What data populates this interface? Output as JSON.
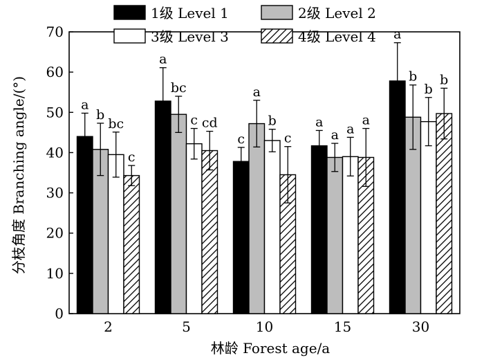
{
  "chart_data": {
    "type": "bar",
    "title": "",
    "xlabel": "林龄 Forest age/a",
    "ylabel": "分枝角度 Branching angle/(°)",
    "ylim": [
      0,
      70
    ],
    "yticks": [
      0,
      10,
      20,
      30,
      40,
      50,
      60,
      70
    ],
    "categories": [
      "2",
      "5",
      "10",
      "15",
      "30"
    ],
    "legend_position": "top",
    "series": [
      {
        "name": "1级 Level 1",
        "fill": "solid-black",
        "values": [
          44.0,
          52.8,
          37.8,
          41.7,
          57.8
        ],
        "errors": [
          5.8,
          8.3,
          3.5,
          3.8,
          9.5
        ],
        "letters": [
          "a",
          "a",
          "c",
          "a",
          "a"
        ]
      },
      {
        "name": "2级 Level 2",
        "fill": "solid-gray",
        "values": [
          40.8,
          49.5,
          47.2,
          38.8,
          48.8
        ],
        "errors": [
          6.5,
          4.5,
          5.8,
          3.5,
          8.0
        ],
        "letters": [
          "b",
          "bc",
          "a",
          "a",
          "b"
        ]
      },
      {
        "name": "3级 Level 3",
        "fill": "white",
        "values": [
          39.5,
          42.2,
          43.0,
          39.0,
          47.7
        ],
        "errors": [
          5.6,
          3.8,
          2.8,
          4.8,
          6.0
        ],
        "letters": [
          "bc",
          "c",
          "b",
          "a",
          "b"
        ]
      },
      {
        "name": "4级 Level 4",
        "fill": "hatched",
        "values": [
          34.3,
          40.5,
          34.5,
          38.8,
          49.7
        ],
        "errors": [
          2.5,
          4.8,
          7.0,
          7.2,
          6.3
        ],
        "letters": [
          "c",
          "cd",
          "c",
          "a",
          "b"
        ]
      }
    ]
  }
}
